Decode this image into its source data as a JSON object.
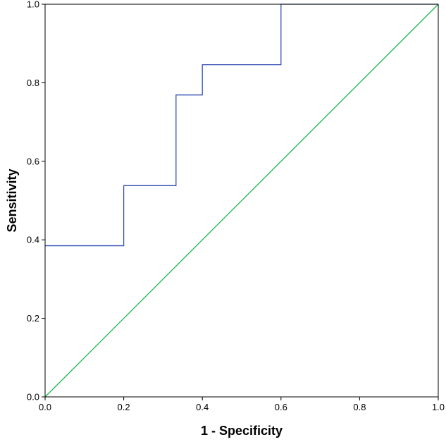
{
  "chart_data": {
    "type": "line",
    "title": "",
    "xlabel": "1 - Specificity",
    "ylabel": "Sensitivity",
    "xlim": [
      0,
      1
    ],
    "ylim": [
      0,
      1
    ],
    "grid": false,
    "x_ticks": [
      "0.0",
      "0.2",
      "0.4",
      "0.6",
      "0.8",
      "1.0"
    ],
    "y_ticks": [
      "0.0",
      "0.2",
      "0.4",
      "0.6",
      "0.8",
      "1.0"
    ],
    "series": [
      {
        "color": "#3a53b5",
        "points": [
          [
            0.0,
            0.385
          ],
          [
            0.2,
            0.385
          ],
          [
            0.2,
            0.538
          ],
          [
            0.333,
            0.538
          ],
          [
            0.333,
            0.769
          ],
          [
            0.4,
            0.769
          ],
          [
            0.4,
            0.846
          ],
          [
            0.6,
            0.846
          ],
          [
            0.6,
            1.0
          ],
          [
            1.0,
            1.0
          ]
        ]
      },
      {
        "color": "#1db84a",
        "points": [
          [
            0.0,
            0.0
          ],
          [
            1.0,
            1.0
          ]
        ]
      }
    ]
  }
}
